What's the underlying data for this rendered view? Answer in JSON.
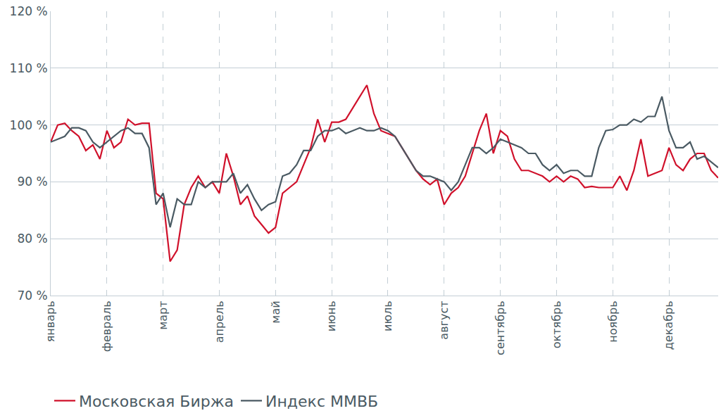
{
  "chart_data": {
    "type": "line",
    "categories": [
      "январь",
      null,
      null,
      null,
      null,
      null,
      null,
      null,
      "февраль",
      null,
      null,
      null,
      null,
      null,
      null,
      null,
      "март",
      null,
      null,
      null,
      null,
      null,
      null,
      null,
      "апрель",
      null,
      null,
      null,
      null,
      null,
      null,
      null,
      "май",
      null,
      null,
      null,
      null,
      null,
      null,
      null,
      "июнь",
      null,
      null,
      null,
      null,
      null,
      null,
      null,
      "июль",
      null,
      null,
      null,
      null,
      null,
      null,
      null,
      "август",
      null,
      null,
      null,
      null,
      null,
      null,
      null,
      "сентябрь",
      null,
      null,
      null,
      null,
      null,
      null,
      null,
      "октябрь",
      null,
      null,
      null,
      null,
      null,
      null,
      null,
      "ноябрь",
      null,
      null,
      null,
      null,
      null,
      null,
      null,
      "декабрь",
      null,
      null,
      null,
      null,
      null,
      null,
      null
    ],
    "series": [
      {
        "name": "Московская Биржа",
        "color": "#d0112b",
        "values": [
          97,
          100,
          100.3,
          99,
          98,
          95.5,
          96.5,
          94,
          99,
          96,
          97,
          101,
          100,
          100.3,
          100.3,
          88,
          87,
          76,
          78,
          86,
          89,
          91,
          89,
          90,
          88,
          95,
          91,
          86,
          87.5,
          84,
          82.5,
          81,
          82,
          88,
          89,
          90,
          93,
          96,
          101,
          97,
          100.5,
          100.5,
          101,
          103,
          105,
          107,
          102,
          99,
          98.5,
          98,
          96,
          94,
          92,
          90.5,
          89.5,
          90.5,
          86,
          88,
          89,
          91,
          95,
          99,
          102,
          95,
          99,
          98,
          94,
          92,
          92,
          91.5,
          91,
          90,
          91,
          90,
          91,
          90.5,
          89,
          89.2,
          89,
          89,
          89,
          91,
          88.5,
          92,
          97.5,
          91,
          91.5,
          92,
          96,
          93,
          92,
          94,
          95,
          95,
          92,
          90.7
        ]
      },
      {
        "name": "Индекс ММВБ",
        "color": "#4a5a63",
        "values": [
          97,
          97.5,
          98,
          99.5,
          99.5,
          99,
          97,
          96,
          97,
          98,
          99,
          99.5,
          98.5,
          98.5,
          96,
          86,
          88,
          82,
          87,
          86,
          86,
          90,
          89,
          90,
          90,
          90,
          91.5,
          88,
          89.5,
          87,
          85,
          86,
          86.5,
          91,
          91.5,
          93,
          95.5,
          95.5,
          98,
          99,
          99,
          99.5,
          98.5,
          99,
          99.5,
          99,
          99,
          99.5,
          99,
          98,
          96,
          94,
          92,
          91,
          91,
          90.5,
          90,
          88.5,
          90,
          93,
          96,
          96,
          95,
          96,
          97.5,
          97,
          96.5,
          96,
          95,
          95,
          93,
          92,
          93,
          91.5,
          92,
          92,
          91,
          91,
          96,
          99,
          99.2,
          100,
          100,
          101,
          100.5,
          101.5,
          101.5,
          105,
          99,
          96,
          96,
          97,
          94,
          94.5,
          93.5,
          92.5
        ]
      }
    ],
    "ylim": [
      70,
      120
    ],
    "yticks": [
      {
        "value": 70,
        "label": "70 %"
      },
      {
        "value": 80,
        "label": "80 %"
      },
      {
        "value": 90,
        "label": "90 %"
      },
      {
        "value": 100,
        "label": "100 %"
      },
      {
        "value": 110,
        "label": "110 %"
      },
      {
        "value": 120,
        "label": "120 %"
      }
    ],
    "grid": true,
    "legend": "bottom"
  }
}
